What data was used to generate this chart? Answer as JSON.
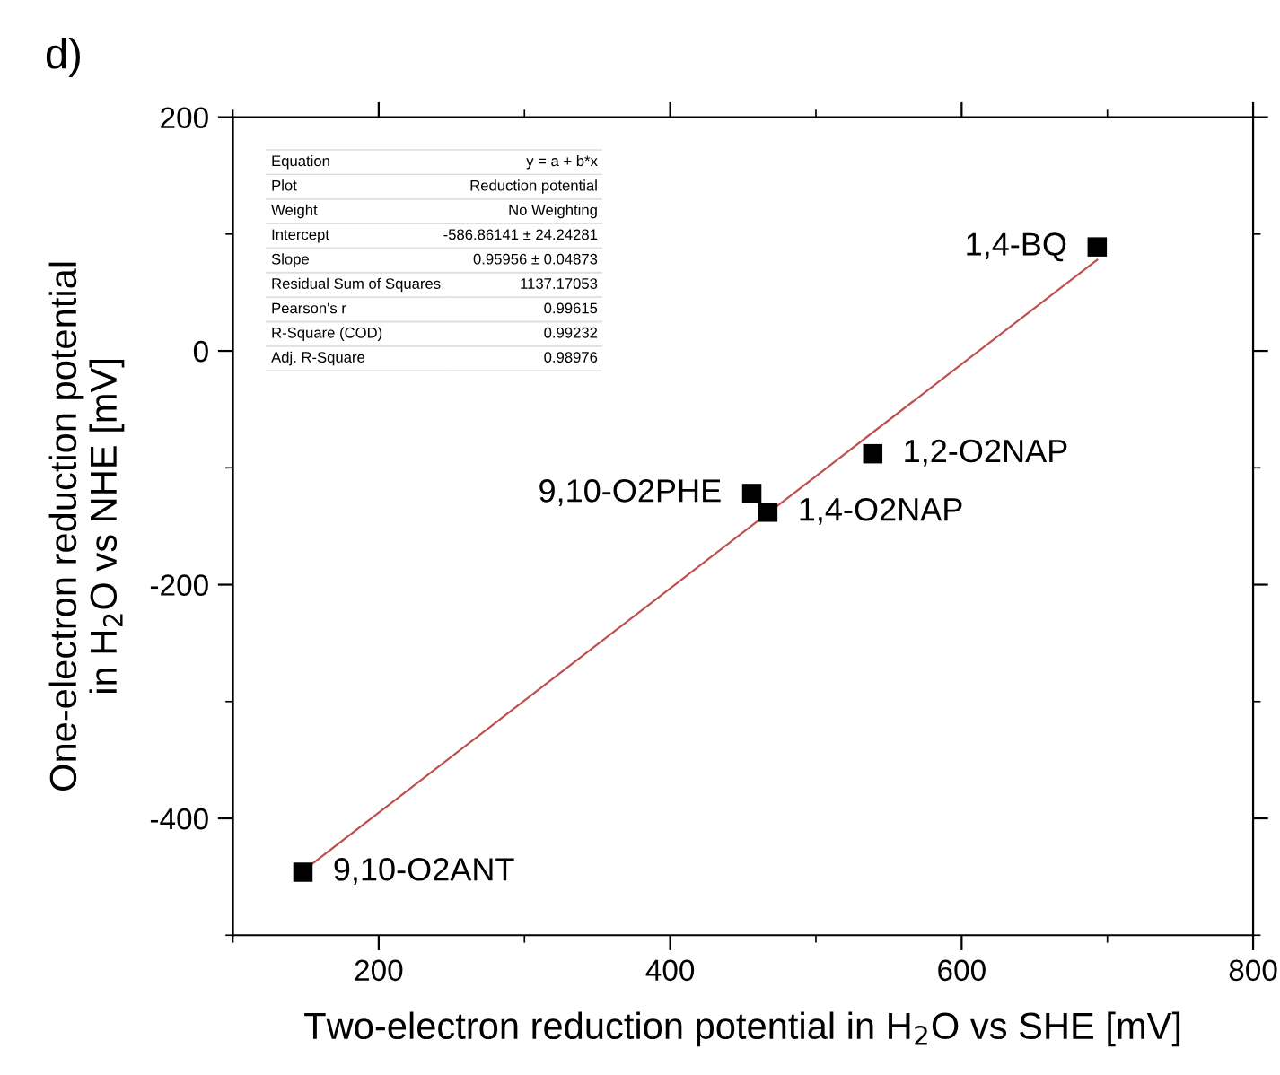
{
  "chart_data": {
    "type": "scatter",
    "title": "d)",
    "xlabel": "Two-electron reduction potential in H$_{2}$O vs SHE [mV]",
    "ylabel": "One-electron reduction potential\nin H$_{2}$O vs NHE [mV]",
    "x": [
      148,
      456,
      467,
      539,
      693
    ],
    "series": [
      {
        "color": "#000000",
        "marker": "square",
        "values": [
          -446,
          -122,
          -138,
          -88,
          89
        ]
      },
      {
        "type": "line",
        "color": "#c0504d",
        "x": [
          148,
          693
        ],
        "values": [
          -445,
          78
        ],
        "line_style": "solid",
        "marker": "none"
      }
    ],
    "xlim": [
      100,
      800
    ],
    "xticks": [
      {
        "value": 100,
        "label": null
      },
      200,
      {
        "value": 300,
        "label": null
      },
      400,
      {
        "value": 500,
        "label": null
      },
      600,
      {
        "value": 700,
        "label": null
      },
      800
    ],
    "ylim": [
      -500,
      200
    ],
    "yticks": [
      {
        "value": -500,
        "label": null
      },
      -400,
      {
        "value": -300,
        "label": null
      },
      -200,
      {
        "value": -100,
        "label": null
      },
      0,
      {
        "value": 100,
        "label": null
      },
      200
    ],
    "grid": false,
    "legend": false,
    "annotations": [
      {
        "text": "9,10-O2ANT",
        "x": 148,
        "y": -446
      },
      {
        "text": "9,10-O2PHE",
        "x": 456,
        "y": -122
      },
      {
        "text": "1,4-O2NAP",
        "x": 467,
        "y": -138
      },
      {
        "text": "1,2-O2NAP",
        "x": 539,
        "y": -88
      },
      {
        "text": "1,4-BQ",
        "x": 693,
        "y": 89
      },
      "Equation",
      "y = a + b*x",
      "Plot",
      "Reduction potential",
      "Weight",
      "No Weighting",
      "Intercept",
      "-586.86141 ± 24.24281",
      "Slope",
      "0.95956 ± 0.04873",
      "Residual Sum of Squares",
      "1137.17053",
      "Pearson's r",
      "0.99615",
      "R-Square (COD)",
      "0.99232",
      "Adj. R-Square",
      "0.98976"
    ]
  }
}
